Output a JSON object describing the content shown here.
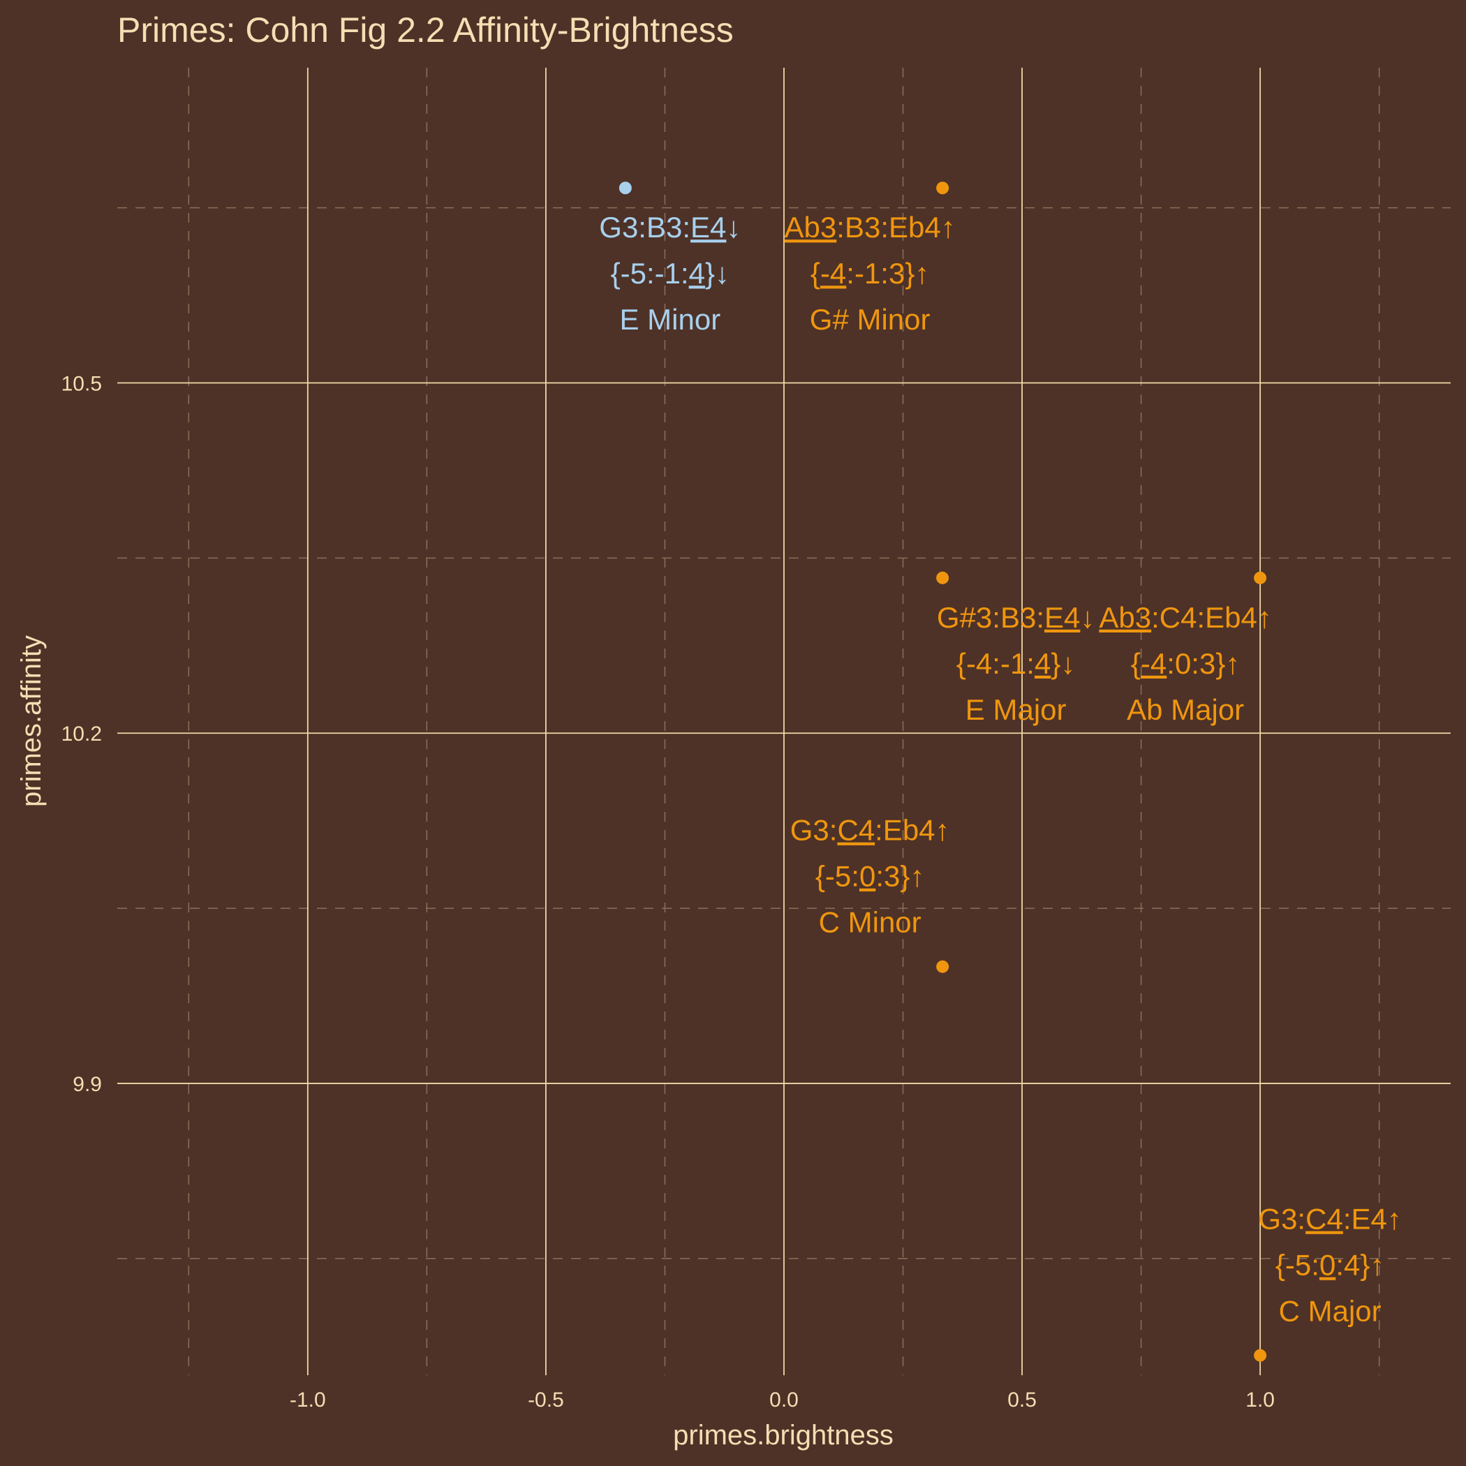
{
  "chart_data": {
    "type": "scatter",
    "title": "Primes: Cohn Fig 2.2 Affinity-Brightness",
    "xlabel": "primes.brightness",
    "ylabel": "primes.affinity",
    "xlim": [
      -1.4,
      1.4
    ],
    "ylim": [
      9.65,
      10.77
    ],
    "x_ticks": [
      -1.0,
      -0.5,
      0.0,
      0.5,
      1.0
    ],
    "x_tick_labels": [
      "-1.0",
      "-0.5",
      "0.0",
      "0.5",
      "1.0"
    ],
    "y_ticks": [
      9.9,
      10.2,
      10.5
    ],
    "y_tick_labels": [
      "9.9",
      "10.2",
      "10.5"
    ],
    "grid": true,
    "colors": {
      "background": "#4e3227",
      "grid_major": "#f0d9a8",
      "grid_minor": "#8a6f5a",
      "text": "#f5deb3",
      "major_chord": "#f0960e",
      "minor_chord_highlight": "#a8d0ee"
    },
    "points": [
      {
        "x": -0.333,
        "y": 10.667,
        "color": "#a8d0ee",
        "lines": [
          [
            {
              "t": "G3:B3:"
            },
            {
              "t": "E4",
              "u": true
            },
            {
              "t": "↓"
            }
          ],
          [
            {
              "t": "{-5:-1:"
            },
            {
              "t": "4",
              "u": true
            },
            {
              "t": "}↓"
            }
          ],
          [
            {
              "t": "E Minor"
            }
          ]
        ]
      },
      {
        "x": 0.333,
        "y": 10.667,
        "color": "#f0960e",
        "lines": [
          [
            {
              "t": "Ab3",
              "u": true
            },
            {
              "t": ":B3:Eb4↑"
            }
          ],
          [
            {
              "t": "{"
            },
            {
              "t": "-4",
              "u": true
            },
            {
              "t": ":-1:3}↑"
            }
          ],
          [
            {
              "t": "G# Minor"
            }
          ]
        ]
      },
      {
        "x": 0.333,
        "y": 10.333,
        "color": "#f0960e",
        "lines": [
          [
            {
              "t": "G#3:B3:"
            },
            {
              "t": "E4",
              "u": true
            },
            {
              "t": "↓"
            }
          ],
          [
            {
              "t": "{-4:-1:"
            },
            {
              "t": "4",
              "u": true
            },
            {
              "t": "}↓"
            }
          ],
          [
            {
              "t": "E Major"
            }
          ]
        ]
      },
      {
        "x": 1.0,
        "y": 10.333,
        "color": "#f0960e",
        "lines": [
          [
            {
              "t": "Ab3",
              "u": true
            },
            {
              "t": ":C4:Eb4↑"
            }
          ],
          [
            {
              "t": "{"
            },
            {
              "t": "-4",
              "u": true
            },
            {
              "t": ":0:3}↑"
            }
          ],
          [
            {
              "t": "Ab Major"
            }
          ]
        ]
      },
      {
        "x": 0.333,
        "y": 10.0,
        "color": "#f0960e",
        "lines": [
          [
            {
              "t": "G3:"
            },
            {
              "t": "C4",
              "u": true
            },
            {
              "t": ":Eb4↑"
            }
          ],
          [
            {
              "t": "{-5:"
            },
            {
              "t": "0",
              "u": true
            },
            {
              "t": ":3}↑"
            }
          ],
          [
            {
              "t": "C Minor"
            }
          ]
        ]
      },
      {
        "x": 1.0,
        "y": 9.667,
        "color": "#f0960e",
        "lines": [
          [
            {
              "t": "G3:"
            },
            {
              "t": "C4",
              "u": true
            },
            {
              "t": ":E4↑"
            }
          ],
          [
            {
              "t": "{-5:"
            },
            {
              "t": "0",
              "u": true
            },
            {
              "t": ":4}↑"
            }
          ],
          [
            {
              "t": "C Major"
            }
          ]
        ]
      }
    ]
  }
}
